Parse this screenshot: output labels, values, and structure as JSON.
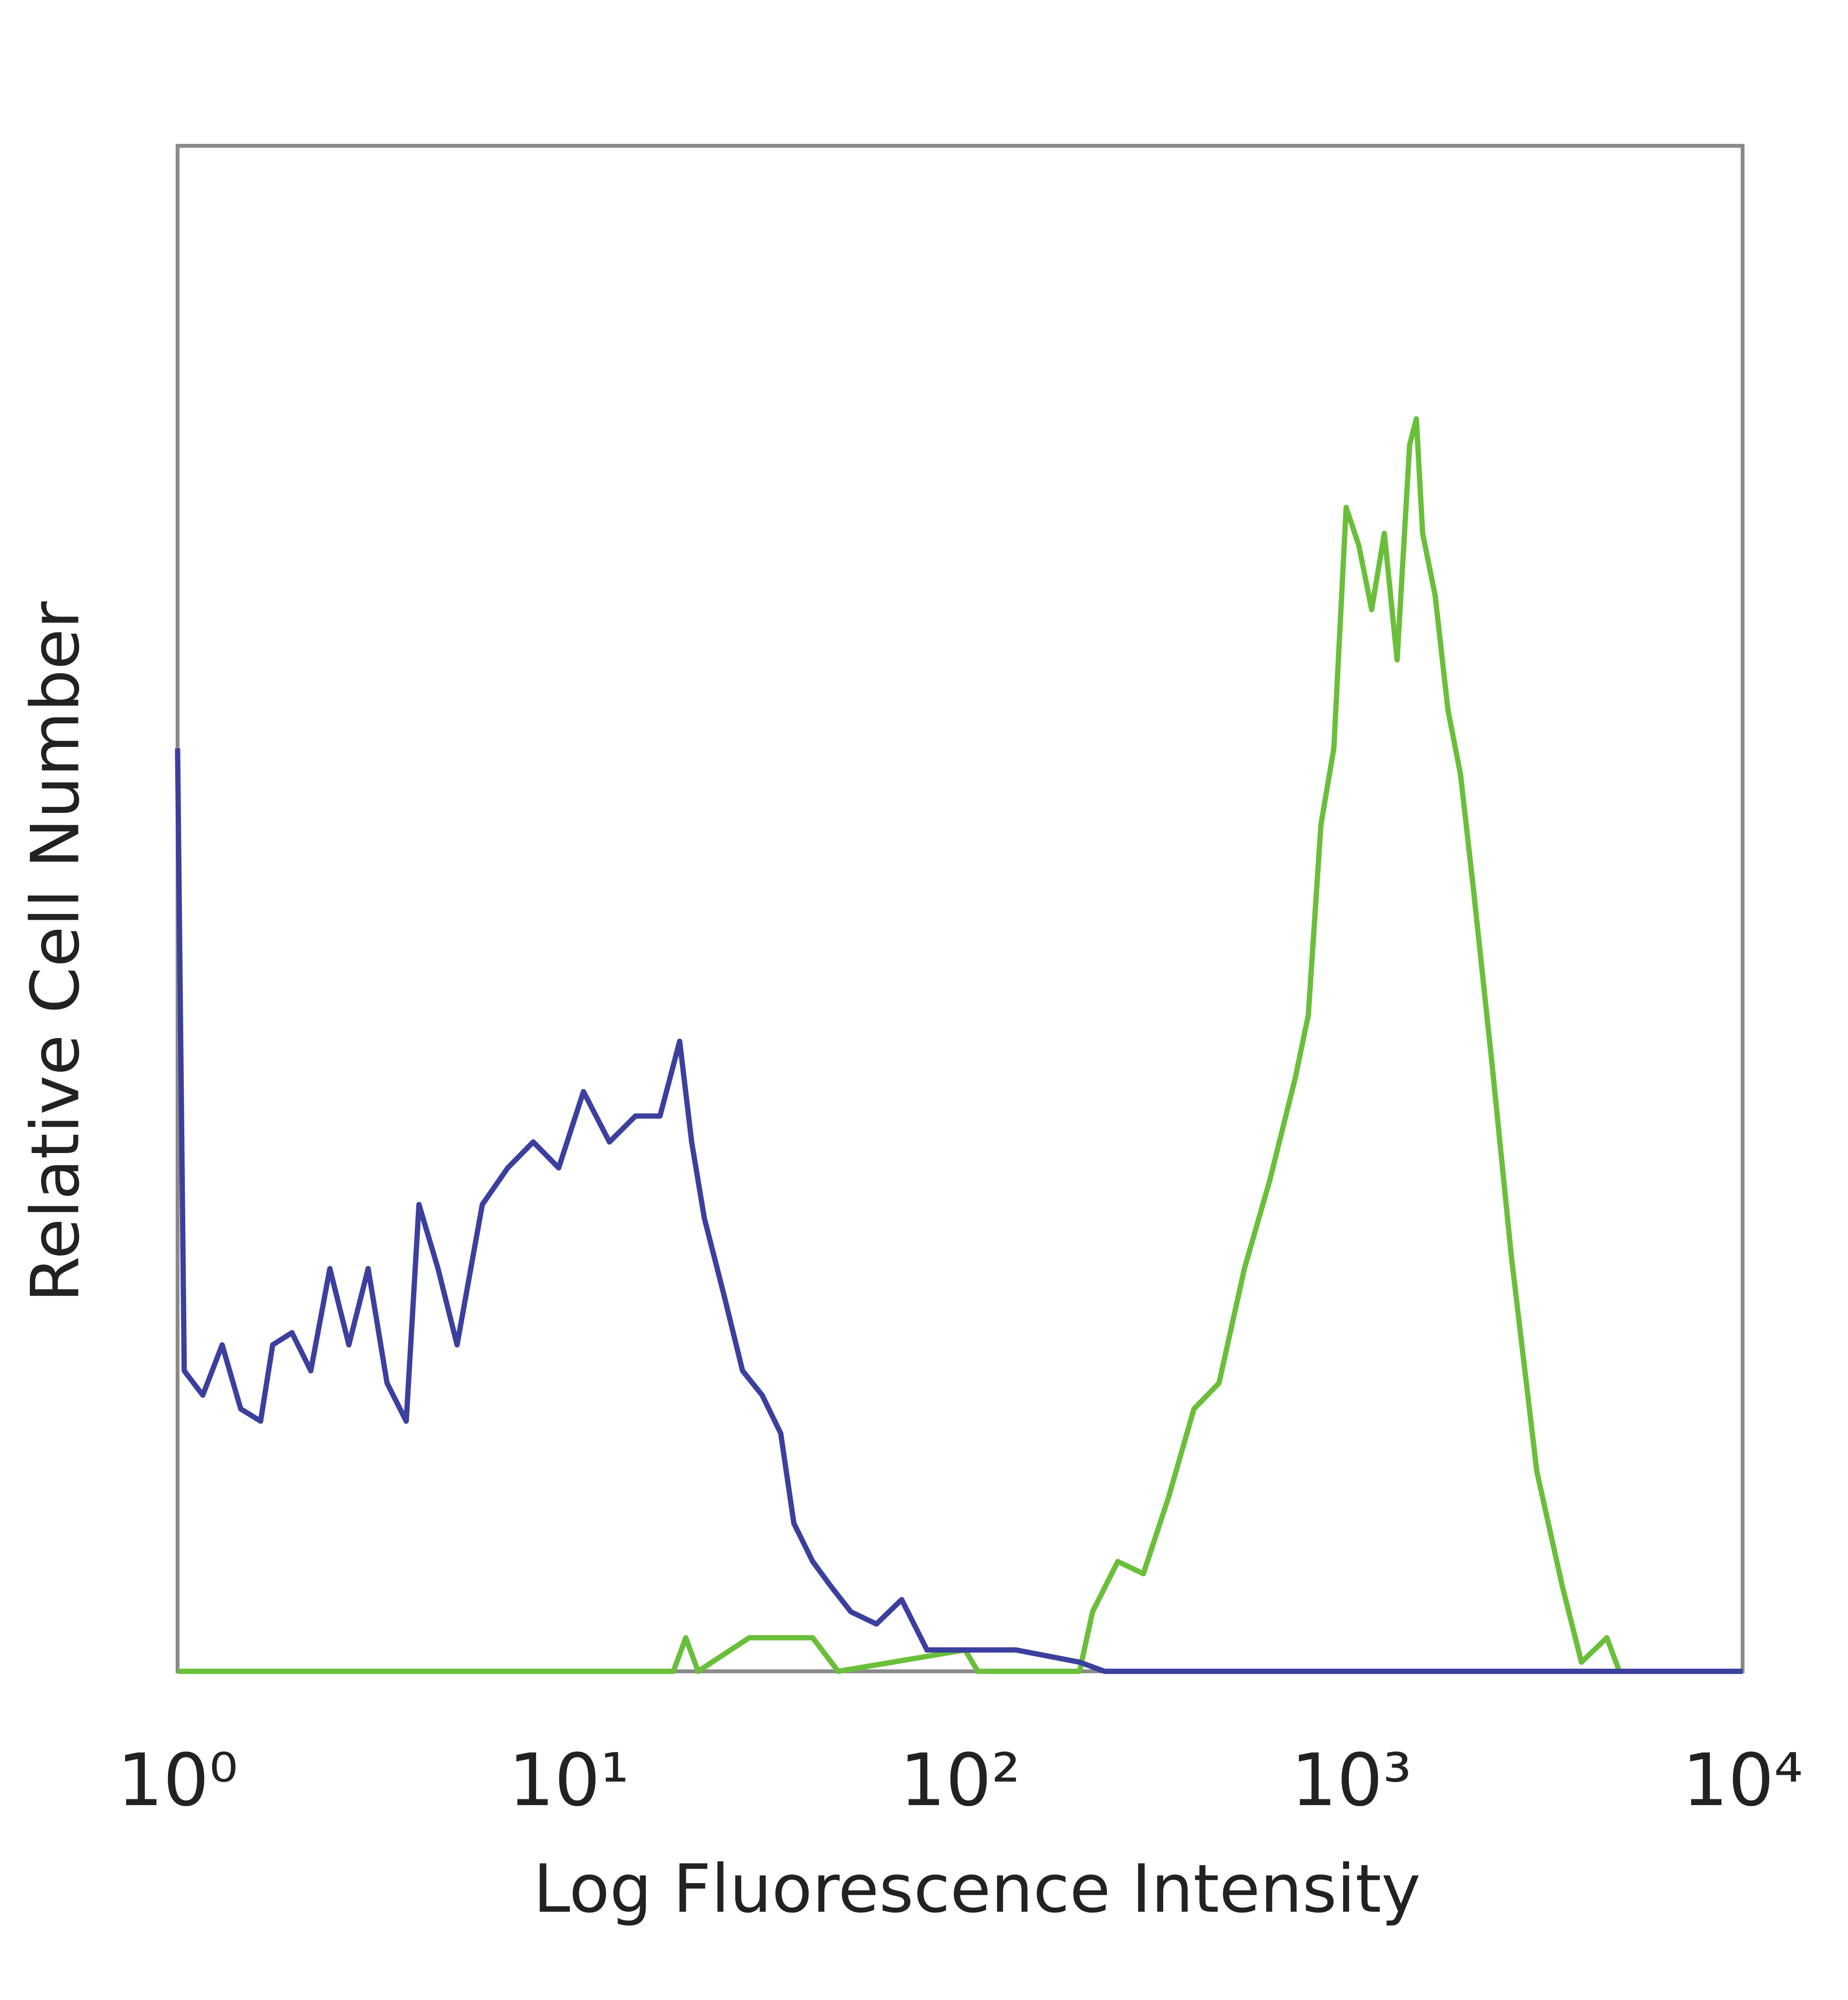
{
  "chart_data": {
    "type": "line",
    "x_label": "Log Fluorescence Intensity",
    "y_label": "Relative Cell Number",
    "xscale": "log",
    "xlim": [
      1,
      10000
    ],
    "ylim": [
      0,
      100
    ],
    "xticks": [
      {
        "value": 1,
        "label": "10⁰"
      },
      {
        "value": 10,
        "label": "10¹"
      },
      {
        "value": 100,
        "label": "10²"
      },
      {
        "value": 1000,
        "label": "10³"
      },
      {
        "value": 10000,
        "label": "10⁴"
      }
    ],
    "series": [
      {
        "color": "#6abf3a",
        "x": [
          1,
          18.5,
          19.9,
          21.4,
          28.9,
          42.0,
          48.8,
          103,
          111,
          202,
          218,
          253,
          294,
          341,
          396,
          459,
          533,
          619,
          719,
          776,
          836,
          902,
          970,
          1045,
          1127,
          1214,
          1309,
          1409,
          1466,
          1521,
          1638,
          1766,
          1901,
          2051,
          2291,
          2564,
          2979,
          3459,
          3873,
          4498,
          4842,
          10000
        ],
        "values": [
          0,
          0,
          2.2,
          0,
          2.2,
          2.2,
          0,
          1.4,
          0,
          0,
          3.9,
          7.2,
          6.4,
          11.4,
          17.2,
          18.9,
          26.4,
          32.2,
          38.9,
          43.0,
          55.5,
          60.5,
          76.3,
          73.8,
          69.6,
          74.6,
          66.3,
          80.4,
          82.1,
          74.6,
          70.5,
          63.0,
          58.8,
          51.3,
          39.7,
          27.2,
          13.1,
          5.6,
          0.6,
          2.2,
          0,
          0
        ]
      },
      {
        "color": "#3b409e",
        "x": [
          1,
          1.04,
          1.16,
          1.3,
          1.45,
          1.63,
          1.75,
          1.96,
          2.19,
          2.45,
          2.74,
          3.07,
          3.43,
          3.84,
          4.14,
          4.63,
          5.18,
          6.01,
          6.98,
          8.11,
          9.42,
          10.9,
          12.7,
          14.8,
          17.1,
          19.2,
          20.6,
          22.2,
          24.9,
          27.8,
          31.2,
          34.8,
          37.6,
          42.0,
          47.0,
          52.6,
          61.1,
          70.9,
          82.3,
          103,
          139,
          202,
          234,
          459,
          970,
          10000
        ],
        "values": [
          60.5,
          19.7,
          18.1,
          21.4,
          17.2,
          16.4,
          21.4,
          22.2,
          19.7,
          26.4,
          21.4,
          26.4,
          18.9,
          16.4,
          30.6,
          26.4,
          21.4,
          30.6,
          33.0,
          34.7,
          33.0,
          38.0,
          34.7,
          36.4,
          36.4,
          41.3,
          34.7,
          29.7,
          24.7,
          19.7,
          18.1,
          15.6,
          9.7,
          7.2,
          5.5,
          3.9,
          3.1,
          4.7,
          1.4,
          1.4,
          1.4,
          0.6,
          0,
          0,
          0,
          0
        ]
      }
    ]
  }
}
